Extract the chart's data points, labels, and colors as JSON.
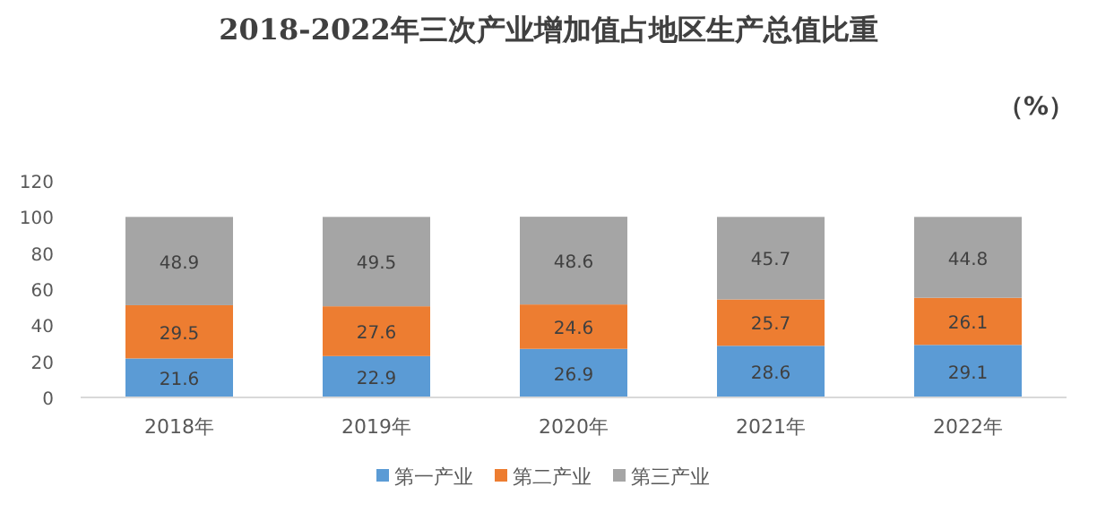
{
  "chart_data": {
    "type": "bar",
    "title": "2018-2022年三次产业增加值占地区生产总值比重",
    "ylabel": "（%）",
    "categories": [
      "2018年",
      "2019年",
      "2020年",
      "2021年",
      "2022年"
    ],
    "stacked": true,
    "data_labels": true,
    "legend": "bottom",
    "grid": false,
    "ylim": [
      0,
      120
    ],
    "yticks": [
      0,
      20,
      40,
      60,
      80,
      100,
      120
    ],
    "series": [
      {
        "name": "第一产业",
        "color": "#5b9bd5",
        "values": [
          21.6,
          22.9,
          26.9,
          28.6,
          29.1
        ]
      },
      {
        "name": "第二产业",
        "color": "#ed7d31",
        "values": [
          29.5,
          27.6,
          24.6,
          25.7,
          26.1
        ]
      },
      {
        "name": "第三产业",
        "color": "#a5a5a5",
        "values": [
          48.9,
          49.5,
          48.6,
          45.7,
          44.8
        ]
      }
    ]
  }
}
